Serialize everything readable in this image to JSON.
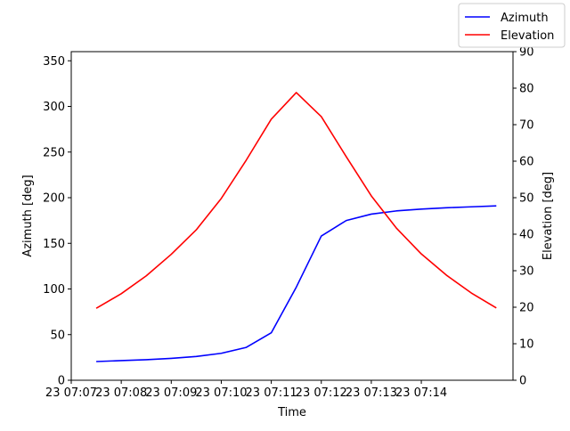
{
  "chart_data": {
    "type": "line",
    "title": "",
    "xlabel": "Time",
    "ylabel_left": "Azimuth [deg]",
    "ylabel_right": "Elevation [deg]",
    "x_ticks": [
      "23 07:07",
      "23 07:08",
      "23 07:09",
      "23 07:10",
      "23 07:11",
      "23 07:12",
      "23 07:13",
      "23 07:14"
    ],
    "x": [
      "07:07:30",
      "07:08:00",
      "07:08:30",
      "07:09:00",
      "07:09:30",
      "07:10:00",
      "07:10:30",
      "07:11:00",
      "07:11:30",
      "07:12:00",
      "07:12:30",
      "07:13:00",
      "07:13:30",
      "07:14:00",
      "07:14:30",
      "07:15:00",
      "07:15:30"
    ],
    "xlim": [
      "07:07:00",
      "07:15:50"
    ],
    "ylim_left": [
      0,
      360
    ],
    "ylim_right": [
      0,
      90
    ],
    "left_ticks": [
      0,
      50,
      100,
      150,
      200,
      250,
      300,
      350
    ],
    "right_ticks": [
      0,
      10,
      20,
      30,
      40,
      50,
      60,
      70,
      80,
      90
    ],
    "series": [
      {
        "name": "Azimuth",
        "axis": "left",
        "color": "#0000ff",
        "values": [
          20.5,
          21.5,
          22.5,
          24,
          26,
          29.5,
          36,
          52,
          102,
          158,
          175,
          182,
          185.5,
          187.5,
          189,
          190,
          191
        ]
      },
      {
        "name": "Elevation",
        "axis": "right",
        "color": "#ff0000",
        "values": [
          19.7,
          23.7,
          28.6,
          34.5,
          41.2,
          49.8,
          60.3,
          71.5,
          78.8,
          72.2,
          61.2,
          50.5,
          41.7,
          34.6,
          28.8,
          23.9,
          19.8
        ]
      }
    ],
    "legend_position": "top-right",
    "grid": false
  }
}
